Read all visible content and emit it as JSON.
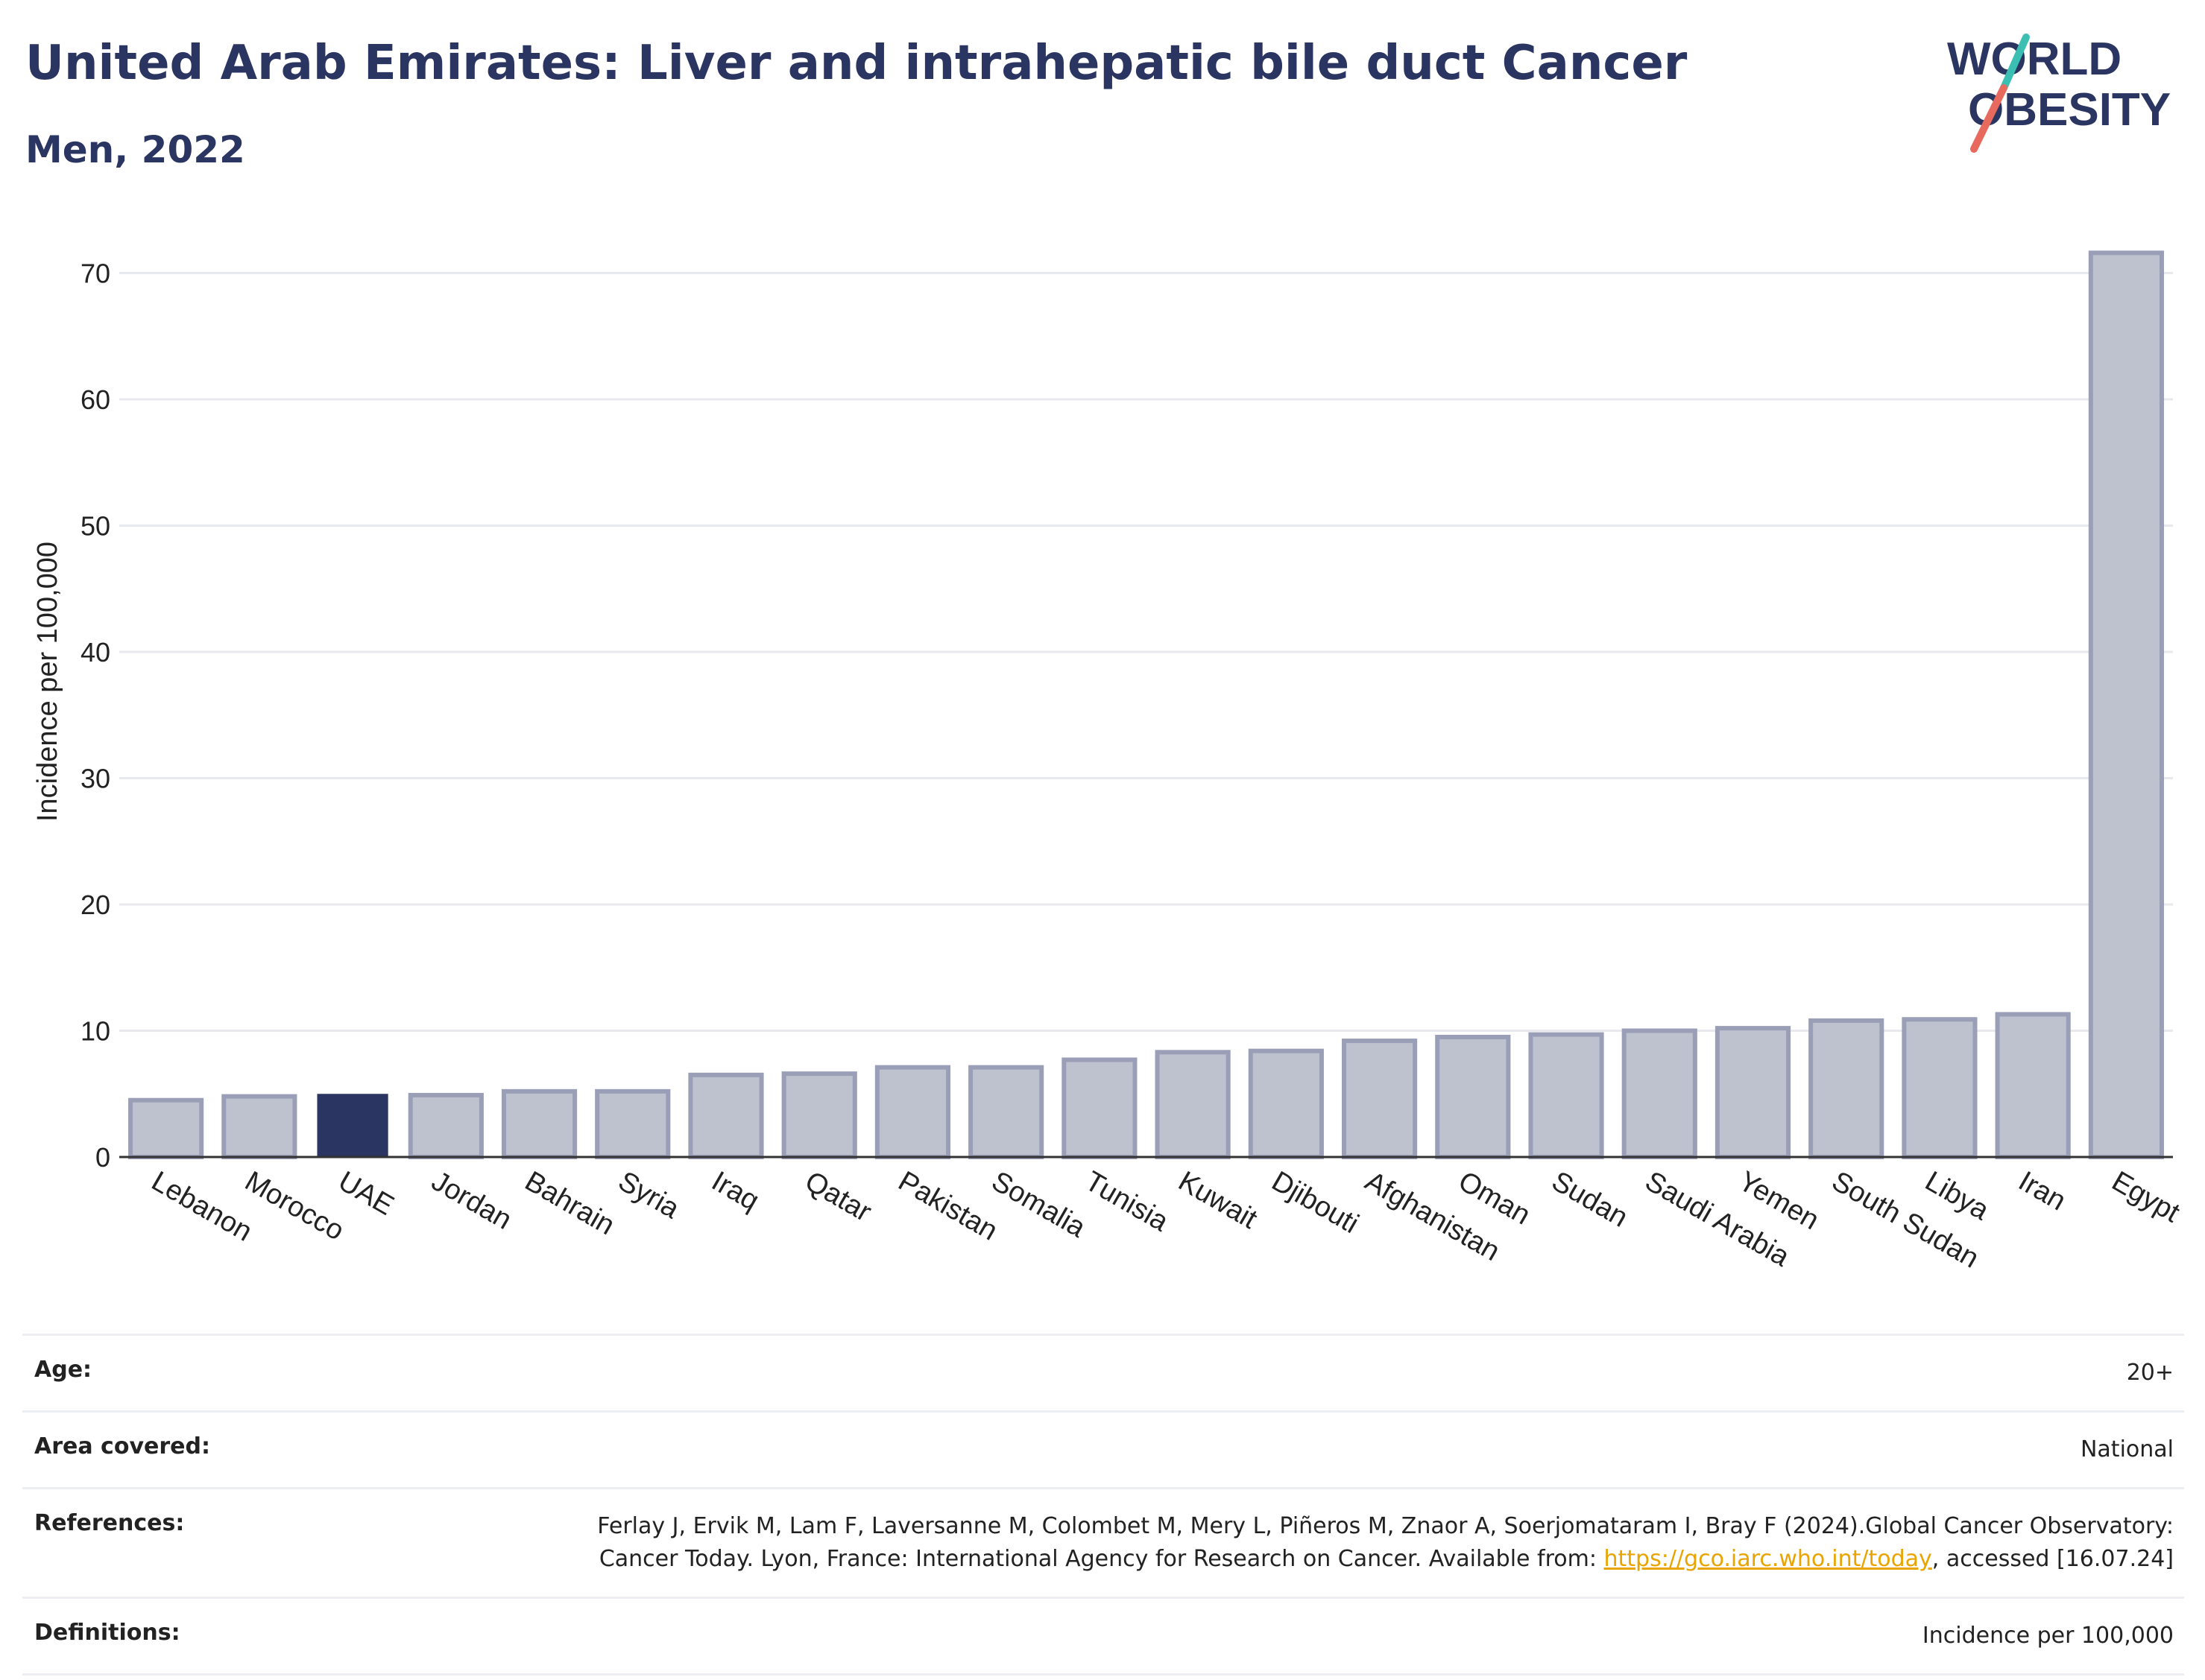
{
  "header": {
    "title": "United Arab Emirates: Liver and intrahepatic bile duct Cancer",
    "subtitle": "Men, 2022"
  },
  "logo": {
    "line1": "WORLD",
    "line2": "OBESITY"
  },
  "colors": {
    "highlight": "#2b3561",
    "bar": "#bec1ce",
    "bar_border": "#9a9fb7",
    "title": "#2b3561",
    "logo_teal": "#3bbfb3",
    "logo_coral": "#e86a5e"
  },
  "chart_data": {
    "type": "bar",
    "categories": [
      "Lebanon",
      "Morocco",
      "UAE",
      "Jordan",
      "Bahrain",
      "Syria",
      "Iraq",
      "Qatar",
      "Pakistan",
      "Somalia",
      "Tunisia",
      "Kuwait",
      "Djibouti",
      "Afghanistan",
      "Oman",
      "Sudan",
      "Saudi Arabia",
      "Yemen",
      "South Sudan",
      "Libya",
      "Iran",
      "Egypt"
    ],
    "values": [
      4.5,
      4.8,
      5.0,
      4.9,
      5.2,
      5.2,
      6.5,
      6.6,
      7.1,
      7.1,
      7.7,
      8.3,
      8.4,
      9.2,
      9.5,
      9.7,
      10.0,
      10.2,
      10.8,
      10.9,
      11.3,
      71.6
    ],
    "highlight": "UAE",
    "ylabel": "Incidence per 100,000",
    "xlabel": "",
    "ylim": [
      0,
      75
    ],
    "yticks": [
      0,
      10,
      20,
      30,
      40,
      50,
      60,
      70
    ],
    "grid": true
  },
  "info": {
    "age_label": "Age:",
    "age_value": "20+",
    "area_label": "Area covered:",
    "area_value": "National",
    "ref_label": "References:",
    "ref_text_1": "Ferlay J, Ervik M, Lam F, Laversanne M, Colombet M, Mery L, Piñeros M, Znaor A, Soerjomataram I, Bray F (2024).Global Cancer Observatory: Cancer Today. Lyon, France: International Agency for Research on Cancer. Available from: ",
    "ref_link": "https://gco.iarc.who.int/today",
    "ref_text_2": ", accessed [16.07.24]",
    "def_label": "Definitions:",
    "def_value": "Incidence per 100,000"
  }
}
